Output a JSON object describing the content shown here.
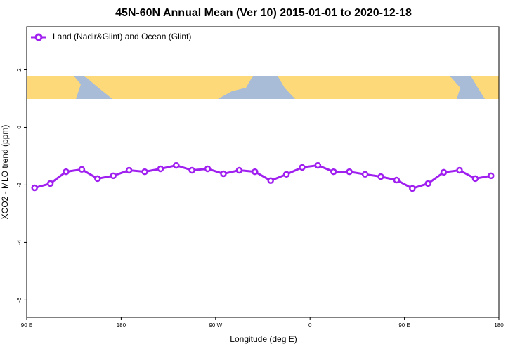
{
  "chart_data": {
    "type": "line",
    "title": "45N-60N Annual Mean (Ver 10)   2015-01-01 to 2020-12-18",
    "x_label": "Longitude (deg E)",
    "y_label": "XCO2 - MLO trend (ppm)",
    "x": [
      97.5,
      112.5,
      127.5,
      142.5,
      157.5,
      172.5,
      187.5,
      202.5,
      217.5,
      232.5,
      247.5,
      262.5,
      277.5,
      292.5,
      307.5,
      322.5,
      337.5,
      352.5,
      367.5,
      382.5,
      397.5,
      412.5,
      427.5,
      442.5,
      457.5,
      472.5,
      487.5,
      502.5,
      517.5,
      532.5
    ],
    "series": [
      {
        "name": "Land (Nadir&Glint) and Ocean (Glint)",
        "color": "#a020f0",
        "values": [
          -2.1,
          -1.95,
          -1.54,
          -1.46,
          -1.78,
          -1.68,
          -1.49,
          -1.54,
          -1.44,
          -1.32,
          -1.49,
          -1.44,
          -1.61,
          -1.49,
          -1.54,
          -1.85,
          -1.63,
          -1.39,
          -1.32,
          -1.54,
          -1.54,
          -1.63,
          -1.71,
          -1.83,
          -2.12,
          -1.95,
          -1.56,
          -1.49,
          -1.78,
          -1.68
        ]
      }
    ],
    "xlim": [
      90,
      540
    ],
    "xticks": [
      {
        "value": 90,
        "label": "90 E"
      },
      {
        "value": 180,
        "label": "180"
      },
      {
        "value": 270,
        "label": "90 W"
      },
      {
        "value": 360,
        "label": "0"
      },
      {
        "value": 450,
        "label": "90 E"
      },
      {
        "value": 540,
        "label": "180"
      }
    ],
    "ylim": [
      -6.6,
      3.5
    ],
    "yticks": [
      2,
      0,
      -2,
      -4,
      -6
    ],
    "legend": "top-left"
  }
}
